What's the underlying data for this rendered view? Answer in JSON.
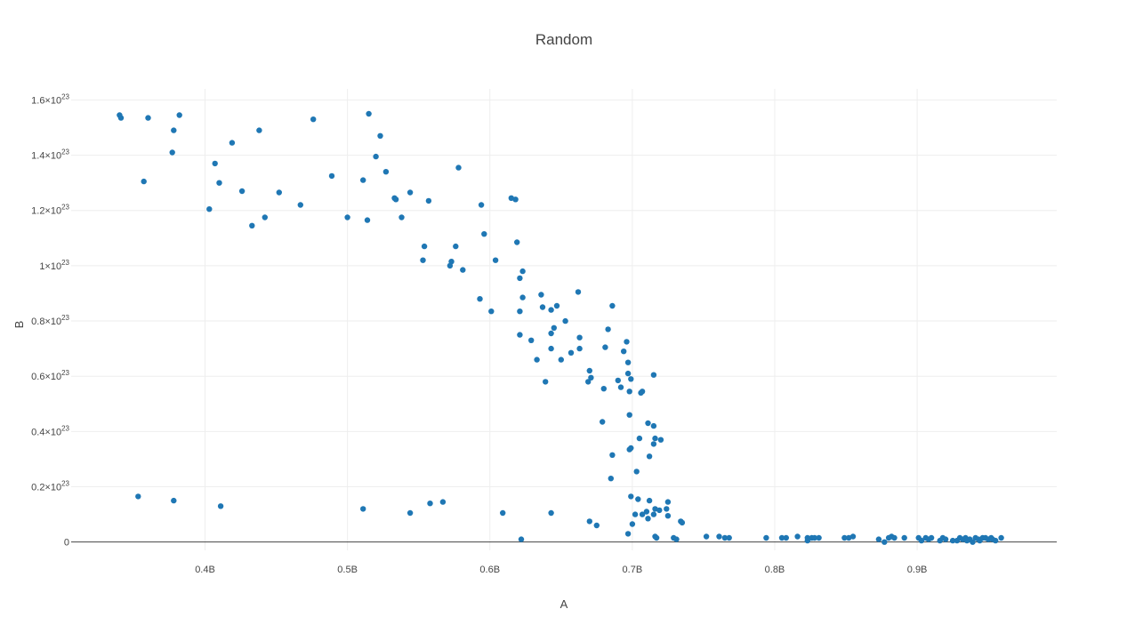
{
  "chart_data": {
    "type": "scatter",
    "title": "Random",
    "xlabel": "A",
    "ylabel": "B",
    "xlim": [
      306000000,
      998000000
    ],
    "ylim": [
      -3000000000000000000000,
      164000000000000000000000
    ],
    "grid": true,
    "x_ticks": [
      {
        "value": 400000000,
        "label": "0.4B"
      },
      {
        "value": 500000000,
        "label": "0.5B"
      },
      {
        "value": 600000000,
        "label": "0.6B"
      },
      {
        "value": 700000000,
        "label": "0.7B"
      },
      {
        "value": 800000000,
        "label": "0.8B"
      },
      {
        "value": 900000000,
        "label": "0.9B"
      }
    ],
    "y_ticks": [
      {
        "value": 0,
        "mantissa": "0",
        "exponent": ""
      },
      {
        "value": 20000000000000000000000,
        "mantissa": "0.2×10",
        "exponent": "23"
      },
      {
        "value": 40000000000000000000000,
        "mantissa": "0.4×10",
        "exponent": "23"
      },
      {
        "value": 60000000000000000000000,
        "mantissa": "0.6×10",
        "exponent": "23"
      },
      {
        "value": 80000000000000000000000,
        "mantissa": "0.8×10",
        "exponent": "23"
      },
      {
        "value": 100000000000000000000000,
        "mantissa": "1×10",
        "exponent": "23"
      },
      {
        "value": 120000000000000000000000,
        "mantissa": "1.2×10",
        "exponent": "23"
      },
      {
        "value": 140000000000000000000000,
        "mantissa": "1.4×10",
        "exponent": "23"
      },
      {
        "value": 160000000000000000000000,
        "mantissa": "1.6×10",
        "exponent": "23"
      }
    ],
    "series": [
      {
        "color": "#1f77b4",
        "x_unit": 1000000000,
        "y_unit": 1e+23,
        "points": [
          [
            0.34,
            1.545
          ],
          [
            0.341,
            1.535
          ],
          [
            0.36,
            1.535
          ],
          [
            0.378,
            1.49
          ],
          [
            0.382,
            1.545
          ],
          [
            0.377,
            1.41
          ],
          [
            0.357,
            1.305
          ],
          [
            0.407,
            1.37
          ],
          [
            0.419,
            1.445
          ],
          [
            0.438,
            1.49
          ],
          [
            0.476,
            1.53
          ],
          [
            0.515,
            1.55
          ],
          [
            0.523,
            1.47
          ],
          [
            0.52,
            1.395
          ],
          [
            0.41,
            1.3
          ],
          [
            0.426,
            1.27
          ],
          [
            0.452,
            1.265
          ],
          [
            0.489,
            1.325
          ],
          [
            0.511,
            1.31
          ],
          [
            0.527,
            1.34
          ],
          [
            0.403,
            1.205
          ],
          [
            0.467,
            1.22
          ],
          [
            0.442,
            1.175
          ],
          [
            0.433,
            1.145
          ],
          [
            0.5,
            1.175
          ],
          [
            0.514,
            1.165
          ],
          [
            0.533,
            1.245
          ],
          [
            0.534,
            1.24
          ],
          [
            0.544,
            1.265
          ],
          [
            0.557,
            1.235
          ],
          [
            0.538,
            1.175
          ],
          [
            0.578,
            1.355
          ],
          [
            0.594,
            1.22
          ],
          [
            0.615,
            1.245
          ],
          [
            0.618,
            1.24
          ],
          [
            0.554,
            1.07
          ],
          [
            0.576,
            1.07
          ],
          [
            0.596,
            1.115
          ],
          [
            0.619,
            1.085
          ],
          [
            0.553,
            1.02
          ],
          [
            0.573,
            1.015
          ],
          [
            0.572,
            1.0
          ],
          [
            0.581,
            0.985
          ],
          [
            0.604,
            1.02
          ],
          [
            0.623,
            0.98
          ],
          [
            0.621,
            0.955
          ],
          [
            0.593,
            0.88
          ],
          [
            0.601,
            0.835
          ],
          [
            0.623,
            0.885
          ],
          [
            0.636,
            0.895
          ],
          [
            0.662,
            0.905
          ],
          [
            0.686,
            0.855
          ],
          [
            0.621,
            0.835
          ],
          [
            0.637,
            0.85
          ],
          [
            0.643,
            0.84
          ],
          [
            0.647,
            0.855
          ],
          [
            0.653,
            0.8
          ],
          [
            0.621,
            0.75
          ],
          [
            0.629,
            0.73
          ],
          [
            0.643,
            0.755
          ],
          [
            0.645,
            0.775
          ],
          [
            0.663,
            0.74
          ],
          [
            0.683,
            0.77
          ],
          [
            0.696,
            0.725
          ],
          [
            0.633,
            0.66
          ],
          [
            0.643,
            0.7
          ],
          [
            0.65,
            0.66
          ],
          [
            0.657,
            0.685
          ],
          [
            0.663,
            0.7
          ],
          [
            0.681,
            0.705
          ],
          [
            0.694,
            0.69
          ],
          [
            0.697,
            0.65
          ],
          [
            0.639,
            0.58
          ],
          [
            0.669,
            0.58
          ],
          [
            0.67,
            0.62
          ],
          [
            0.671,
            0.595
          ],
          [
            0.68,
            0.555
          ],
          [
            0.69,
            0.585
          ],
          [
            0.692,
            0.56
          ],
          [
            0.697,
            0.61
          ],
          [
            0.699,
            0.59
          ],
          [
            0.698,
            0.545
          ],
          [
            0.706,
            0.54
          ],
          [
            0.707,
            0.545
          ],
          [
            0.715,
            0.605
          ],
          [
            0.698,
            0.46
          ],
          [
            0.679,
            0.435
          ],
          [
            0.711,
            0.43
          ],
          [
            0.715,
            0.42
          ],
          [
            0.686,
            0.315
          ],
          [
            0.705,
            0.375
          ],
          [
            0.699,
            0.34
          ],
          [
            0.698,
            0.335
          ],
          [
            0.716,
            0.375
          ],
          [
            0.72,
            0.37
          ],
          [
            0.715,
            0.355
          ],
          [
            0.712,
            0.31
          ],
          [
            0.703,
            0.255
          ],
          [
            0.685,
            0.23
          ],
          [
            0.699,
            0.165
          ],
          [
            0.704,
            0.155
          ],
          [
            0.712,
            0.15
          ],
          [
            0.725,
            0.145
          ],
          [
            0.71,
            0.11
          ],
          [
            0.716,
            0.12
          ],
          [
            0.719,
            0.115
          ],
          [
            0.724,
            0.12
          ],
          [
            0.702,
            0.1
          ],
          [
            0.707,
            0.1
          ],
          [
            0.715,
            0.1
          ],
          [
            0.725,
            0.095
          ],
          [
            0.7,
            0.065
          ],
          [
            0.711,
            0.085
          ],
          [
            0.734,
            0.075
          ],
          [
            0.735,
            0.07
          ],
          [
            0.697,
            0.03
          ],
          [
            0.717,
            0.015
          ],
          [
            0.716,
            0.02
          ],
          [
            0.729,
            0.015
          ],
          [
            0.731,
            0.01
          ],
          [
            0.67,
            0.075
          ],
          [
            0.675,
            0.06
          ],
          [
            0.353,
            0.165
          ],
          [
            0.378,
            0.15
          ],
          [
            0.411,
            0.13
          ],
          [
            0.511,
            0.12
          ],
          [
            0.544,
            0.105
          ],
          [
            0.558,
            0.14
          ],
          [
            0.567,
            0.145
          ],
          [
            0.609,
            0.105
          ],
          [
            0.643,
            0.105
          ],
          [
            0.622,
            0.01
          ],
          [
            0.752,
            0.02
          ],
          [
            0.761,
            0.02
          ],
          [
            0.765,
            0.015
          ],
          [
            0.768,
            0.015
          ],
          [
            0.794,
            0.015
          ],
          [
            0.805,
            0.015
          ],
          [
            0.808,
            0.015
          ],
          [
            0.816,
            0.02
          ],
          [
            0.823,
            0.015
          ],
          [
            0.826,
            0.015
          ],
          [
            0.828,
            0.015
          ],
          [
            0.831,
            0.015
          ],
          [
            0.823,
            0.005
          ],
          [
            0.849,
            0.015
          ],
          [
            0.852,
            0.015
          ],
          [
            0.855,
            0.02
          ],
          [
            0.873,
            0.01
          ],
          [
            0.877,
            0.0
          ],
          [
            0.88,
            0.015
          ],
          [
            0.882,
            0.02
          ],
          [
            0.884,
            0.015
          ],
          [
            0.891,
            0.015
          ],
          [
            0.901,
            0.015
          ],
          [
            0.903,
            0.005
          ],
          [
            0.906,
            0.015
          ],
          [
            0.908,
            0.01
          ],
          [
            0.91,
            0.015
          ],
          [
            0.916,
            0.005
          ],
          [
            0.918,
            0.015
          ],
          [
            0.92,
            0.01
          ],
          [
            0.925,
            0.005
          ],
          [
            0.928,
            0.005
          ],
          [
            0.93,
            0.015
          ],
          [
            0.932,
            0.01
          ],
          [
            0.934,
            0.015
          ],
          [
            0.935,
            0.005
          ],
          [
            0.937,
            0.01
          ],
          [
            0.939,
            0.0
          ],
          [
            0.941,
            0.015
          ],
          [
            0.943,
            0.01
          ],
          [
            0.944,
            0.005
          ],
          [
            0.946,
            0.015
          ],
          [
            0.948,
            0.015
          ],
          [
            0.95,
            0.01
          ],
          [
            0.952,
            0.015
          ],
          [
            0.953,
            0.01
          ],
          [
            0.955,
            0.005
          ],
          [
            0.959,
            0.015
          ]
        ]
      }
    ]
  }
}
